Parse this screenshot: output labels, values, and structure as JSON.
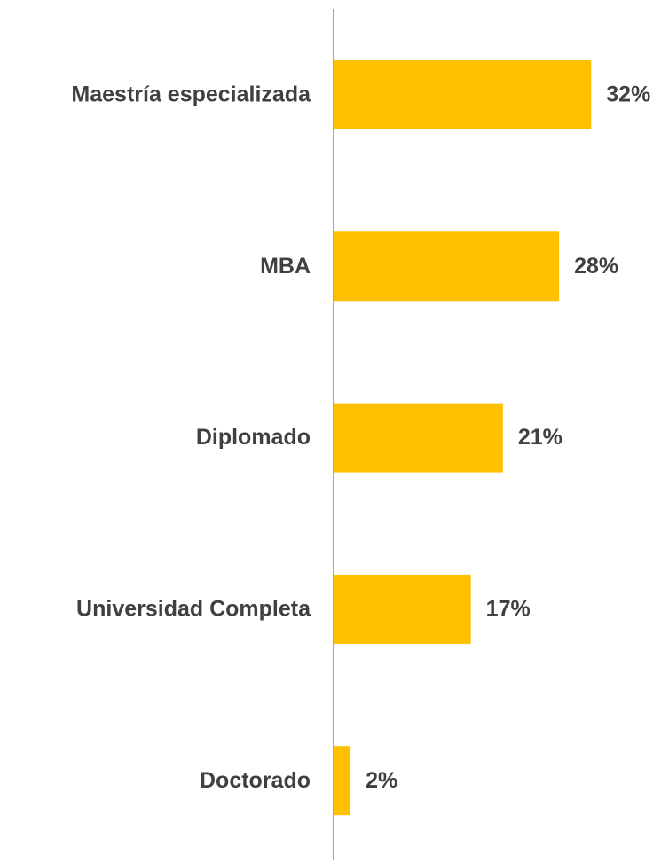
{
  "chart_data": {
    "type": "bar",
    "orientation": "horizontal",
    "categories": [
      "Maestría especializada",
      "MBA",
      "Diplomado",
      "Universidad Completa",
      "Doctorado"
    ],
    "values": [
      32,
      28,
      21,
      17,
      2
    ],
    "value_labels": [
      "32%",
      "28%",
      "21%",
      "17%",
      "2%"
    ],
    "color": "#FFC000"
  }
}
